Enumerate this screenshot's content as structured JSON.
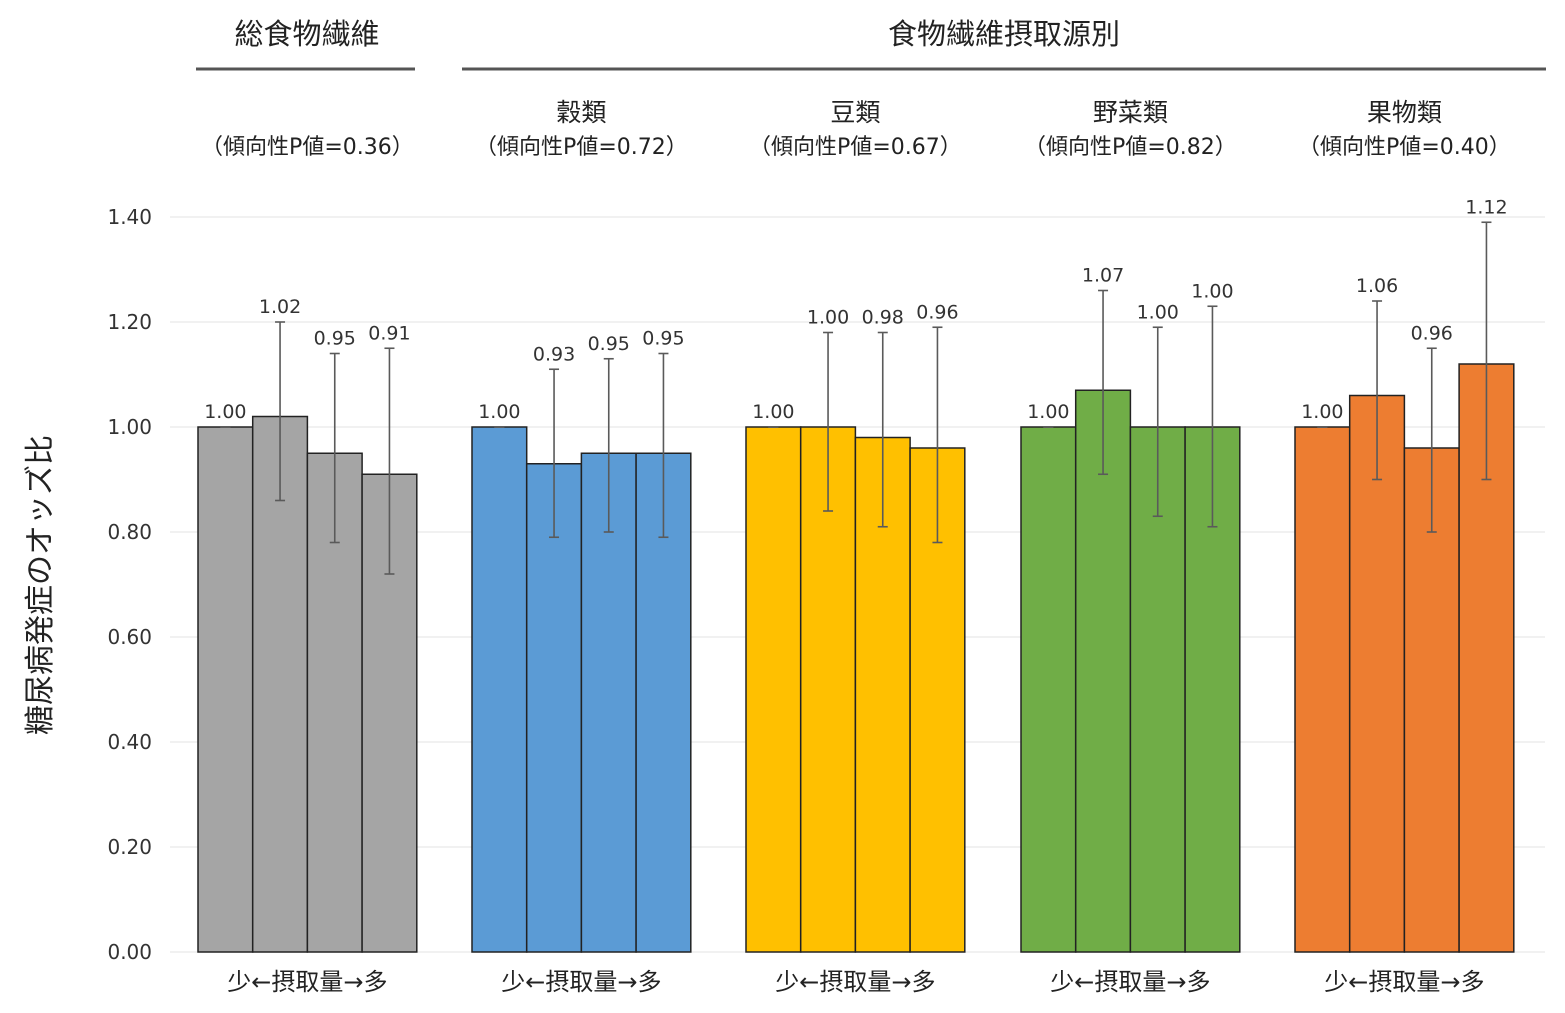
{
  "chart_data": {
    "type": "bar",
    "ylabel": "糖尿病発症のオッズ比",
    "ylim": [
      0,
      1.4
    ],
    "yticks": [
      "0.00",
      "0.20",
      "0.40",
      "0.60",
      "0.80",
      "1.00",
      "1.20",
      "1.40"
    ],
    "grid": true,
    "headers": {
      "total": "総食物繊維",
      "by_source": "食物繊維摂取源別"
    },
    "x_category_label": "少←摂取量→多",
    "groups": [
      {
        "name": "",
        "trend_p": "（傾向性P値=0.36）",
        "color": "#a5a5a5",
        "values": [
          1.0,
          1.02,
          0.95,
          0.91
        ],
        "labels": [
          "1.00",
          "1.02",
          "0.95",
          "0.91"
        ],
        "ci_low": [
          1.0,
          0.86,
          0.78,
          0.72
        ],
        "ci_high": [
          1.0,
          1.2,
          1.14,
          1.15
        ]
      },
      {
        "name": "穀類",
        "trend_p": "（傾向性P値=0.72）",
        "color": "#5b9bd5",
        "values": [
          1.0,
          0.93,
          0.95,
          0.95
        ],
        "labels": [
          "1.00",
          "0.93",
          "0.95",
          "0.95"
        ],
        "ci_low": [
          1.0,
          0.79,
          0.8,
          0.79
        ],
        "ci_high": [
          1.0,
          1.11,
          1.13,
          1.14
        ]
      },
      {
        "name": "豆類",
        "trend_p": "（傾向性P値=0.67）",
        "color": "#ffc000",
        "values": [
          1.0,
          1.0,
          0.98,
          0.96
        ],
        "labels": [
          "1.00",
          "1.00",
          "0.98",
          "0.96"
        ],
        "ci_low": [
          1.0,
          0.84,
          0.81,
          0.78
        ],
        "ci_high": [
          1.0,
          1.18,
          1.18,
          1.19
        ]
      },
      {
        "name": "野菜類",
        "trend_p": "（傾向性P値=0.82）",
        "color": "#70ad47",
        "values": [
          1.0,
          1.07,
          1.0,
          1.0
        ],
        "labels": [
          "1.00",
          "1.07",
          "1.00",
          "1.00"
        ],
        "ci_low": [
          1.0,
          0.91,
          0.83,
          0.81
        ],
        "ci_high": [
          1.0,
          1.26,
          1.19,
          1.23
        ]
      },
      {
        "name": "果物類",
        "trend_p": "（傾向性P値=0.40）",
        "color": "#ed7d31",
        "values": [
          1.0,
          1.06,
          0.96,
          1.12
        ],
        "labels": [
          "1.00",
          "1.06",
          "0.96",
          "1.12"
        ],
        "ci_low": [
          1.0,
          0.9,
          0.8,
          0.9
        ],
        "ci_high": [
          1.0,
          1.24,
          1.15,
          1.39
        ]
      }
    ]
  }
}
